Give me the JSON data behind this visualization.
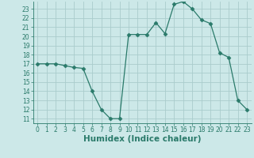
{
  "x": [
    0,
    1,
    2,
    3,
    4,
    5,
    6,
    7,
    8,
    9,
    10,
    11,
    12,
    13,
    14,
    15,
    16,
    17,
    18,
    19,
    20,
    21,
    22,
    23
  ],
  "y": [
    17,
    17,
    17,
    16.8,
    16.6,
    16.5,
    14,
    12,
    11,
    11,
    20.2,
    20.2,
    20.2,
    21.5,
    20.3,
    23.5,
    23.8,
    23,
    21.8,
    21.4,
    18.2,
    17.7,
    13,
    12
  ],
  "xlabel": "Humidex (Indice chaleur)",
  "xlim": [
    -0.5,
    23.5
  ],
  "ylim": [
    10.5,
    23.8
  ],
  "yticks": [
    11,
    12,
    13,
    14,
    15,
    16,
    17,
    18,
    19,
    20,
    21,
    22,
    23
  ],
  "xticks": [
    0,
    1,
    2,
    3,
    4,
    5,
    6,
    7,
    8,
    9,
    10,
    11,
    12,
    13,
    14,
    15,
    16,
    17,
    18,
    19,
    20,
    21,
    22,
    23
  ],
  "line_color": "#2a7a6a",
  "bg_color": "#cce8e8",
  "grid_color": "#aacccc",
  "markersize": 2.5,
  "tick_fontsize": 5.5,
  "xlabel_fontsize": 7.5
}
